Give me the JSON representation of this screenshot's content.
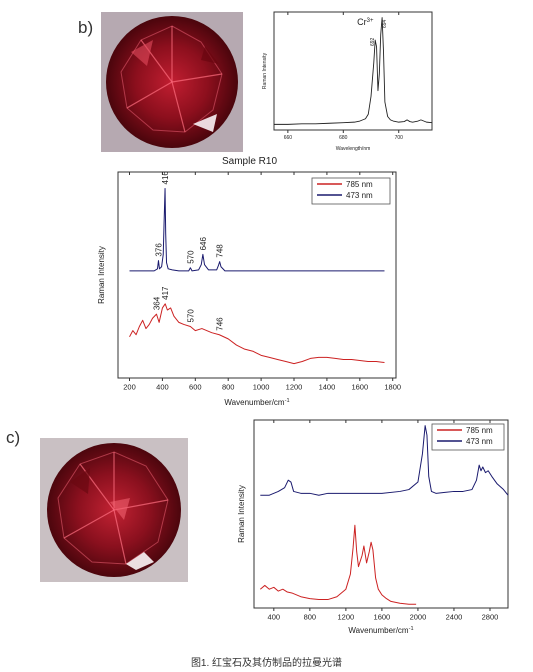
{
  "panels": {
    "b": {
      "label": "b)",
      "sample_label": "Sample R10"
    },
    "c": {
      "label": "c)"
    }
  },
  "caption": "图1. 红宝石及其仿制品的拉曼光谱",
  "chart_data": [
    {
      "id": "b-inset",
      "type": "line",
      "title": "",
      "xlabel": "Wavelength/nm",
      "ylabel": "Raman Intensity",
      "xlim": [
        655,
        712
      ],
      "ylim": [
        0,
        1.05
      ],
      "xticks": [
        660,
        680,
        700
      ],
      "annotation_label": "Cr",
      "annotation_sup": "3+",
      "peak_labels": [
        "692",
        "694"
      ],
      "series": [
        {
          "x": [
            655,
            660,
            665,
            670,
            675,
            680,
            684,
            686,
            688,
            689,
            690,
            691,
            691.5,
            692,
            692.5,
            693,
            693.5,
            694,
            694.5,
            695,
            696,
            697,
            698,
            700,
            702,
            703,
            704,
            705,
            707,
            708,
            710,
            712
          ],
          "y": [
            0.05,
            0.05,
            0.055,
            0.055,
            0.06,
            0.065,
            0.07,
            0.08,
            0.1,
            0.14,
            0.3,
            0.6,
            0.8,
            0.74,
            0.35,
            0.5,
            0.85,
            1.0,
            0.7,
            0.25,
            0.12,
            0.09,
            0.08,
            0.07,
            0.075,
            0.09,
            0.075,
            0.07,
            0.08,
            0.09,
            0.07,
            0.065
          ],
          "color": "#222222"
        }
      ]
    },
    {
      "id": "b-main",
      "type": "line",
      "xlabel": "Wavenumber/cm",
      "xlabel_sup": "-1",
      "ylabel": "Raman Intensity",
      "xlim": [
        130,
        1820
      ],
      "ylim": [
        0,
        1
      ],
      "xticks": [
        200,
        400,
        600,
        800,
        1000,
        1200,
        1400,
        1600,
        1800
      ],
      "legend_position": "top-right",
      "series": [
        {
          "name": "785 nm",
          "color": "#cc2222",
          "x": [
            200,
            220,
            240,
            260,
            280,
            300,
            320,
            340,
            364,
            380,
            400,
            417,
            430,
            450,
            470,
            500,
            530,
            570,
            600,
            640,
            700,
            746,
            800,
            850,
            900,
            950,
            1000,
            1050,
            1100,
            1150,
            1200,
            1250,
            1300,
            1350,
            1400,
            1450,
            1500,
            1550,
            1600,
            1650,
            1700,
            1750
          ],
          "y": [
            0.2,
            0.23,
            0.21,
            0.25,
            0.28,
            0.24,
            0.26,
            0.29,
            0.31,
            0.27,
            0.34,
            0.36,
            0.33,
            0.34,
            0.3,
            0.27,
            0.26,
            0.25,
            0.23,
            0.24,
            0.22,
            0.21,
            0.19,
            0.16,
            0.14,
            0.13,
            0.11,
            0.1,
            0.09,
            0.08,
            0.07,
            0.08,
            0.095,
            0.1,
            0.1,
            0.095,
            0.09,
            0.09,
            0.085,
            0.08,
            0.08,
            0.075
          ],
          "peak_labels": [
            {
              "x": 364,
              "y": 0.31,
              "text": "364"
            },
            {
              "x": 417,
              "y": 0.36,
              "text": "417"
            },
            {
              "x": 570,
              "y": 0.25,
              "text": "570"
            },
            {
              "x": 746,
              "y": 0.21,
              "text": "746"
            }
          ]
        },
        {
          "name": "473 nm",
          "color": "#1a1a6e",
          "x": [
            200,
            300,
            350,
            370,
            376,
            382,
            395,
            405,
            410,
            416,
            420,
            425,
            435,
            460,
            500,
            560,
            570,
            580,
            620,
            636,
            646,
            656,
            680,
            730,
            740,
            748,
            756,
            780,
            900,
            1000,
            1200,
            1400,
            1600,
            1750
          ],
          "y": [
            0.52,
            0.52,
            0.52,
            0.53,
            0.57,
            0.53,
            0.54,
            0.6,
            0.75,
            0.92,
            0.7,
            0.56,
            0.53,
            0.525,
            0.52,
            0.52,
            0.535,
            0.52,
            0.525,
            0.55,
            0.6,
            0.55,
            0.525,
            0.525,
            0.545,
            0.565,
            0.54,
            0.52,
            0.52,
            0.52,
            0.52,
            0.52,
            0.52,
            0.52
          ],
          "peak_labels": [
            {
              "x": 376,
              "y": 0.57,
              "text": "376"
            },
            {
              "x": 416,
              "y": 0.92,
              "text": "416"
            },
            {
              "x": 570,
              "y": 0.535,
              "text": "570"
            },
            {
              "x": 646,
              "y": 0.6,
              "text": "646"
            },
            {
              "x": 748,
              "y": 0.565,
              "text": "748"
            }
          ]
        }
      ]
    },
    {
      "id": "c-main",
      "type": "line",
      "xlabel": "Wavenumber/cm",
      "xlabel_sup": "-1",
      "ylabel": "Raman Intensity",
      "xlim": [
        180,
        3000
      ],
      "ylim": [
        0,
        1
      ],
      "xticks": [
        400,
        800,
        1200,
        1600,
        2000,
        2400,
        2800
      ],
      "legend_position": "top-right",
      "series": [
        {
          "name": "785 nm",
          "color": "#cc2222",
          "x": [
            250,
            300,
            350,
            400,
            450,
            500,
            550,
            600,
            650,
            700,
            800,
            900,
            1000,
            1100,
            1200,
            1250,
            1280,
            1300,
            1320,
            1340,
            1380,
            1400,
            1430,
            1460,
            1480,
            1500,
            1530,
            1560,
            1600,
            1650,
            1700,
            1800,
            1900,
            1980
          ],
          "y": [
            0.1,
            0.12,
            0.1,
            0.11,
            0.09,
            0.1,
            0.085,
            0.08,
            0.07,
            0.06,
            0.05,
            0.045,
            0.045,
            0.06,
            0.1,
            0.18,
            0.32,
            0.44,
            0.3,
            0.22,
            0.28,
            0.33,
            0.24,
            0.3,
            0.35,
            0.31,
            0.16,
            0.1,
            0.07,
            0.05,
            0.035,
            0.025,
            0.02,
            0.02
          ],
          "peak_labels": []
        },
        {
          "name": "473 nm",
          "color": "#1a1a6e",
          "x": [
            250,
            350,
            450,
            520,
            560,
            590,
            620,
            700,
            800,
            900,
            1000,
            1200,
            1400,
            1600,
            1800,
            1900,
            2000,
            2050,
            2080,
            2100,
            2120,
            2150,
            2200,
            2300,
            2400,
            2500,
            2600,
            2650,
            2680,
            2700,
            2720,
            2750,
            2780,
            2820,
            2880,
            2950,
            3000
          ],
          "y": [
            0.6,
            0.6,
            0.62,
            0.64,
            0.68,
            0.67,
            0.62,
            0.61,
            0.61,
            0.6,
            0.61,
            0.61,
            0.61,
            0.61,
            0.62,
            0.63,
            0.67,
            0.82,
            0.97,
            0.92,
            0.7,
            0.62,
            0.61,
            0.615,
            0.62,
            0.62,
            0.63,
            0.68,
            0.76,
            0.73,
            0.75,
            0.72,
            0.73,
            0.7,
            0.66,
            0.63,
            0.6
          ],
          "peak_labels": []
        }
      ]
    }
  ],
  "colors": {
    "ruby_dark": "#5a0810",
    "ruby_mid": "#9e1524",
    "ruby_light": "#d8475a",
    "gem_bg": "#b9aab1"
  }
}
